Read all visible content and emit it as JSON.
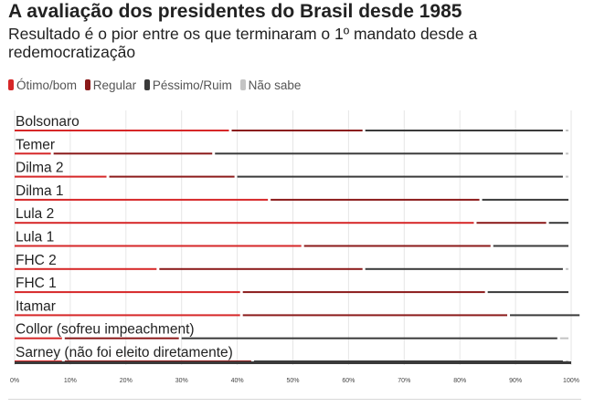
{
  "header": {
    "title": "A avaliação dos presidentes do Brasil desde 1985",
    "subtitle": "Resultado é o pior entre os que terminaram o 1º mandato desde a redemocratização"
  },
  "legend": [
    {
      "label": "Ótimo/bom",
      "color": "#d62728"
    },
    {
      "label": "Regular",
      "color": "#8b1a1a"
    },
    {
      "label": "Péssimo/Ruim",
      "color": "#3a3a3a"
    },
    {
      "label": "Não sabe",
      "color": "#c4c4c4"
    }
  ],
  "chart_data": {
    "type": "bar",
    "stacked": true,
    "orientation": "horizontal",
    "categories": [
      "Bolsonaro",
      "Temer",
      "Dilma 2",
      "Dilma 1",
      "Lula 2",
      "Lula 1",
      "FHC 2",
      "FHC 1",
      "Itamar",
      "Collor (sofreu impeachment)",
      "Sarney (não foi eleito diretamente)"
    ],
    "series": [
      {
        "name": "Ótimo/bom",
        "color": "#d62728",
        "values": [
          39,
          7,
          17,
          46,
          83,
          52,
          26,
          41,
          41,
          9,
          9
        ]
      },
      {
        "name": "Regular",
        "color": "#8b1a1a",
        "values": [
          24,
          29,
          23,
          38,
          13,
          34,
          37,
          44,
          48,
          21,
          34
        ]
      },
      {
        "name": "Péssimo/Ruim",
        "color": "#3a3a3a",
        "values": [
          36,
          63,
          59,
          16,
          4,
          14,
          36,
          15,
          13,
          68,
          56
        ]
      },
      {
        "name": "Não sabe",
        "color": "#c4c4c4",
        "values": [
          1,
          1,
          1,
          0,
          0,
          0,
          1,
          0,
          0,
          2,
          1
        ]
      }
    ],
    "xlim": [
      0,
      100
    ],
    "xticks": [
      "0%",
      "10%",
      "20%",
      "30%",
      "40%",
      "50%",
      "60%",
      "70%",
      "80%",
      "90%",
      "100%"
    ],
    "grid": true
  }
}
